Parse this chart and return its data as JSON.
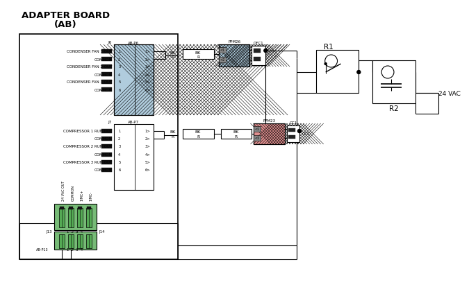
{
  "title1": "ADAPTER BOARD",
  "title2": "(AB)",
  "bg_color": "#ffffff",
  "fan_labels": [
    "CONDENSER FAN 1 OUT",
    "COMMON",
    "CONDENSER FAN 2 OUT",
    "COMMON",
    "CONDENSER FAN 3 OUT",
    "COMMON"
  ],
  "comp_labels": [
    "COMPRESSOR 1 RUN OUT",
    "COMMON",
    "COMPRESSOR 2 RUN OUT",
    "COMMON",
    "COMPRESSOR 3 RUN OUT",
    "COMMON"
  ],
  "bottom_labels": [
    "24 VAC OUT",
    "COMMON",
    "1IMC+",
    "1IMC-"
  ],
  "connector_fan_color": "#b0ccdd",
  "connector_bottom_color": "#77bb77",
  "ppm_fan_color": "#b0ccdd",
  "ppm_comp_color": "#e09090",
  "text_color": "#000000",
  "line_color": "#000000",
  "label_24vac": "24 VAC",
  "label_R1": "R1",
  "label_R2": "R2",
  "label_OFC1": "OFC1",
  "label_CC1": "CC1",
  "label_PPM26": "PPM26",
  "label_PPM23": "PPM23",
  "label_AB_P6": "AB-P6",
  "label_AB_P7": "AB-P7",
  "label_J6": "J6",
  "label_J7": "J7",
  "label_J13": "J13",
  "label_J14": "J14",
  "label_AB_P13": "AB-P13",
  "label_BK": "BK",
  "label_R": "R"
}
